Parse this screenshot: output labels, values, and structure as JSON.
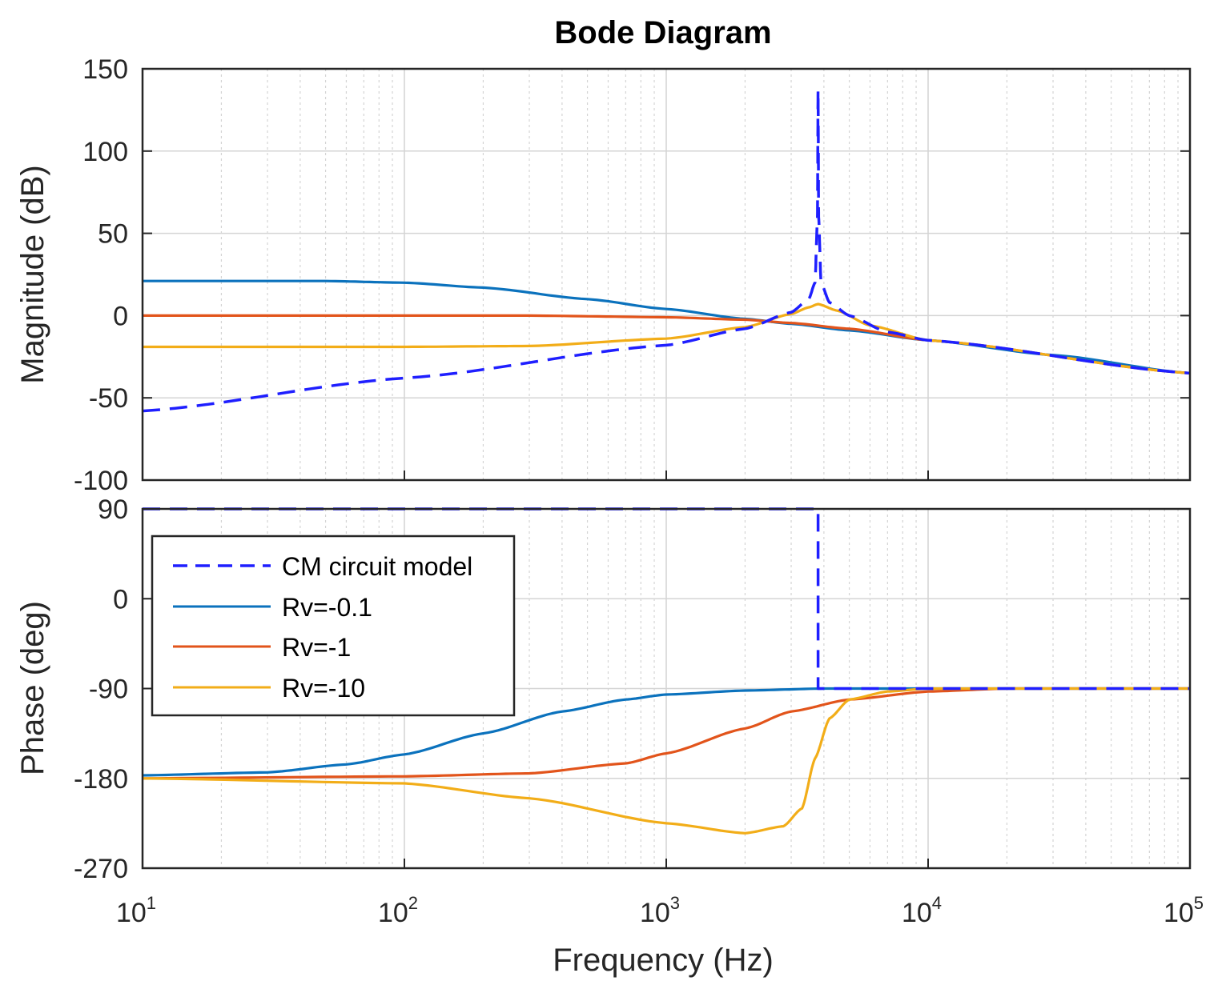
{
  "chart_data": {
    "type": "line",
    "title": "Bode Diagram",
    "xlabel": "Frequency  (Hz)",
    "xscale": "log",
    "xlim": [
      10,
      100000
    ],
    "x_ticks": [
      {
        "base": "10",
        "exp": "1"
      },
      {
        "base": "10",
        "exp": "2"
      },
      {
        "base": "10",
        "exp": "3"
      },
      {
        "base": "10",
        "exp": "4"
      },
      {
        "base": "10",
        "exp": "5"
      }
    ],
    "legend": {
      "position": "upper-left of phase plot",
      "entries": [
        "CM circuit model",
        "Rv=-0.1",
        "Rv=-1",
        "Rv=-10"
      ]
    },
    "colors": {
      "cm": "#1f1fff",
      "rv01": "#0b72bd",
      "rv1": "#e2541b",
      "rv10": "#f2ad18"
    },
    "magnitude": {
      "ylabel": "Magnitude (dB)",
      "ylim": [
        -100,
        150
      ],
      "yticks": [
        "150",
        "100",
        "50",
        "0",
        "-50",
        "-100"
      ],
      "series": [
        {
          "name": "CM circuit model",
          "key": "cm",
          "style": "dashed",
          "points": [
            [
              10,
              -58
            ],
            [
              100,
              -38
            ],
            [
              1000,
              -18
            ],
            [
              2000,
              -8
            ],
            [
              3000,
              2
            ],
            [
              3500,
              10
            ],
            [
              3700,
              20
            ],
            [
              3780,
              60
            ],
            [
              3800,
              137
            ],
            [
              3820,
              60
            ],
            [
              3900,
              20
            ],
            [
              4200,
              8
            ],
            [
              5000,
              0
            ],
            [
              7000,
              -10
            ],
            [
              10000,
              -15
            ],
            [
              100000,
              -35
            ]
          ]
        },
        {
          "name": "Rv=-0.1",
          "key": "rv01",
          "style": "solid",
          "points": [
            [
              10,
              21
            ],
            [
              50,
              21
            ],
            [
              100,
              20
            ],
            [
              200,
              17
            ],
            [
              500,
              10
            ],
            [
              1000,
              4
            ],
            [
              2000,
              -2
            ],
            [
              3000,
              -5
            ],
            [
              5000,
              -9
            ],
            [
              10000,
              -15
            ],
            [
              30000,
              -24
            ],
            [
              100000,
              -35
            ]
          ]
        },
        {
          "name": "Rv=-1",
          "key": "rv1",
          "style": "solid",
          "points": [
            [
              10,
              0
            ],
            [
              100,
              0
            ],
            [
              300,
              0
            ],
            [
              1000,
              -1
            ],
            [
              2000,
              -2.5
            ],
            [
              3000,
              -4.5
            ],
            [
              5000,
              -8
            ],
            [
              10000,
              -15
            ],
            [
              100000,
              -35
            ]
          ]
        },
        {
          "name": "Rv=-10",
          "key": "rv10",
          "style": "solid",
          "points": [
            [
              10,
              -19
            ],
            [
              100,
              -19
            ],
            [
              300,
              -18.5
            ],
            [
              1000,
              -14
            ],
            [
              2000,
              -7
            ],
            [
              3000,
              1
            ],
            [
              3500,
              5
            ],
            [
              3800,
              7
            ],
            [
              4500,
              3
            ],
            [
              6000,
              -6
            ],
            [
              10000,
              -15
            ],
            [
              100000,
              -35
            ]
          ]
        }
      ]
    },
    "phase": {
      "ylabel": "Phase (deg)",
      "ylim": [
        -270,
        90
      ],
      "yticks": [
        "90",
        "0",
        "-90",
        "-180",
        "-270"
      ],
      "series": [
        {
          "name": "CM circuit model",
          "key": "cm",
          "style": "dashed",
          "points": [
            [
              10,
              90
            ],
            [
              3800,
              90
            ],
            [
              3800,
              -90
            ],
            [
              100000,
              -90
            ]
          ]
        },
        {
          "name": "Rv=-0.1",
          "key": "rv01",
          "style": "solid",
          "points": [
            [
              10,
              -177
            ],
            [
              30,
              -174
            ],
            [
              60,
              -166
            ],
            [
              100,
              -156
            ],
            [
              200,
              -135
            ],
            [
              400,
              -113
            ],
            [
              700,
              -101
            ],
            [
              1000,
              -96
            ],
            [
              2000,
              -92
            ],
            [
              4000,
              -90
            ],
            [
              100000,
              -90
            ]
          ]
        },
        {
          "name": "Rv=-1",
          "key": "rv1",
          "style": "solid",
          "points": [
            [
              10,
              -180
            ],
            [
              100,
              -178
            ],
            [
              300,
              -175
            ],
            [
              700,
              -165
            ],
            [
              1000,
              -155
            ],
            [
              2000,
              -130
            ],
            [
              3000,
              -113
            ],
            [
              5000,
              -101
            ],
            [
              10000,
              -93
            ],
            [
              20000,
              -90
            ],
            [
              100000,
              -90
            ]
          ]
        },
        {
          "name": "Rv=-10",
          "key": "rv10",
          "style": "solid",
          "points": [
            [
              10,
              -180
            ],
            [
              100,
              -185
            ],
            [
              300,
              -200
            ],
            [
              1000,
              -225
            ],
            [
              2000,
              -235
            ],
            [
              2800,
              -228
            ],
            [
              3300,
              -210
            ],
            [
              3700,
              -160
            ],
            [
              4200,
              -120
            ],
            [
              5000,
              -101
            ],
            [
              7000,
              -93
            ],
            [
              10000,
              -90
            ],
            [
              100000,
              -90
            ]
          ]
        }
      ]
    }
  }
}
